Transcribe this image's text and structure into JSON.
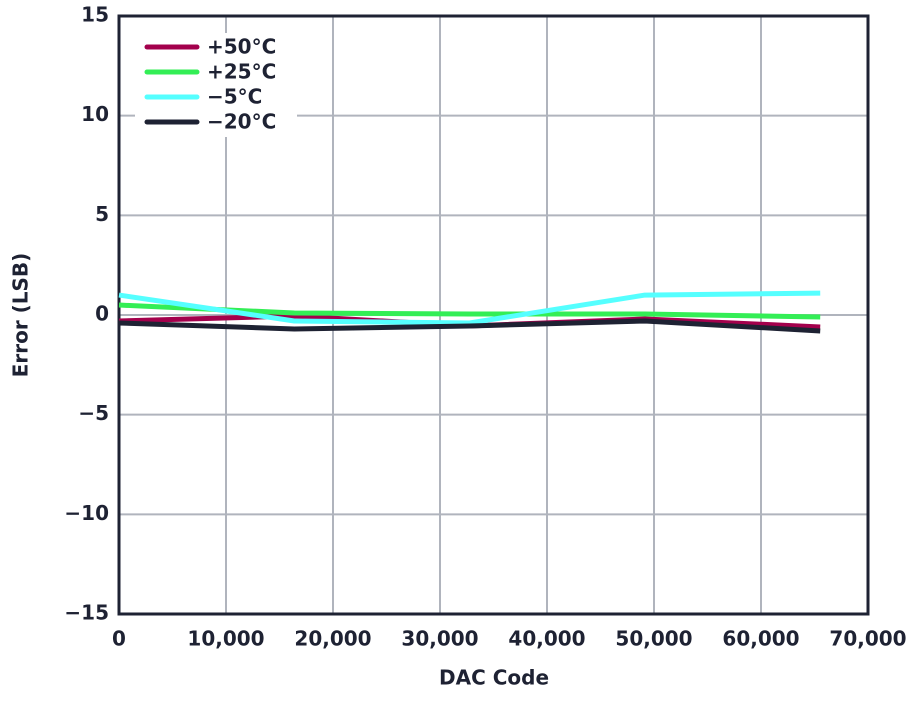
{
  "chart_data": {
    "type": "line",
    "x_label": "DAC Code",
    "y_label": "Error (LSB)",
    "x": [
      0,
      16384,
      32768,
      49152,
      65535
    ],
    "series": [
      {
        "name": "+50°C",
        "color": "#a3004c",
        "values": [
          -0.3,
          -0.05,
          -0.55,
          -0.2,
          -0.6
        ]
      },
      {
        "name": "+25°C",
        "color": "#33ee55",
        "values": [
          0.5,
          0.1,
          0.05,
          0.05,
          -0.1
        ]
      },
      {
        "name": "−5°C",
        "color": "#55ffff",
        "values": [
          1.0,
          -0.3,
          -0.4,
          1.0,
          1.1
        ]
      },
      {
        "name": "−20°C",
        "color": "#1e2233",
        "values": [
          -0.4,
          -0.7,
          -0.55,
          -0.3,
          -0.8
        ]
      }
    ],
    "xlim": [
      0,
      70000
    ],
    "xticks": [
      0,
      {
        "value": 10000,
        "label": "10,000"
      },
      {
        "value": 20000,
        "label": "20,000"
      },
      {
        "value": 30000,
        "label": "30,000"
      },
      {
        "value": 40000,
        "label": "40,000"
      },
      {
        "value": 50000,
        "label": "50,000"
      },
      {
        "value": 60000,
        "label": "60,000"
      },
      {
        "value": 70000,
        "label": "70,000"
      }
    ],
    "ylim": [
      -15,
      15
    ],
    "yticks": [
      {
        "value": -15,
        "label": "−15"
      },
      {
        "value": -10,
        "label": "−10"
      },
      {
        "value": -5,
        "label": "−5"
      },
      0,
      5,
      10,
      15
    ],
    "grid": true,
    "legend": "upper-left"
  }
}
